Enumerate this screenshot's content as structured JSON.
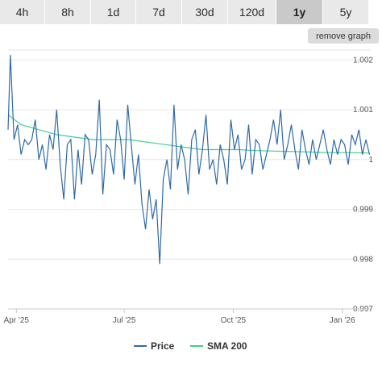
{
  "tabs": [
    {
      "label": "4h",
      "active": false
    },
    {
      "label": "8h",
      "active": false
    },
    {
      "label": "1d",
      "active": false
    },
    {
      "label": "7d",
      "active": false
    },
    {
      "label": "30d",
      "active": false
    },
    {
      "label": "120d",
      "active": false
    },
    {
      "label": "1y",
      "active": true
    },
    {
      "label": "5y",
      "active": false
    }
  ],
  "remove_graph_label": "remove graph",
  "colors": {
    "price": "#2f6aa6",
    "sma": "#3fcf8a",
    "grid": "#e6e6e6",
    "tab_bg": "#e9e9e9",
    "tab_active": "#c9c9c9"
  },
  "chart_data": {
    "type": "line",
    "title": "",
    "xlabel": "",
    "ylabel": "",
    "x_ticks": [
      "Apr '25",
      "Jul '25",
      "Oct '25",
      "Jan '26"
    ],
    "y_ticks": [
      "0.997",
      "0.998",
      "0.999",
      "1",
      "1.001",
      "1.002"
    ],
    "ylim": [
      0.997,
      1.0022
    ],
    "xlim": [
      "2025-03-25",
      "2026-01-25"
    ],
    "legend_position": "bottom",
    "series": [
      {
        "name": "Price",
        "x": [
          "2025-03-25",
          "2025-03-27",
          "2025-03-30",
          "2025-04-02",
          "2025-04-05",
          "2025-04-08",
          "2025-04-11",
          "2025-04-14",
          "2025-04-17",
          "2025-04-20",
          "2025-04-23",
          "2025-04-26",
          "2025-04-29",
          "2025-05-02",
          "2025-05-05",
          "2025-05-08",
          "2025-05-11",
          "2025-05-14",
          "2025-05-17",
          "2025-05-20",
          "2025-05-23",
          "2025-05-26",
          "2025-05-29",
          "2025-06-01",
          "2025-06-04",
          "2025-06-07",
          "2025-06-10",
          "2025-06-13",
          "2025-06-16",
          "2025-06-19",
          "2025-06-22",
          "2025-06-25",
          "2025-06-28",
          "2025-07-01",
          "2025-07-04",
          "2025-07-07",
          "2025-07-10",
          "2025-07-13",
          "2025-07-16",
          "2025-07-19",
          "2025-07-22",
          "2025-07-25",
          "2025-07-28",
          "2025-07-31",
          "2025-08-03",
          "2025-08-06",
          "2025-08-09",
          "2025-08-12",
          "2025-08-15",
          "2025-08-18",
          "2025-08-21",
          "2025-08-24",
          "2025-08-27",
          "2025-08-30",
          "2025-09-02",
          "2025-09-05",
          "2025-09-08",
          "2025-09-11",
          "2025-09-14",
          "2025-09-17",
          "2025-09-20",
          "2025-09-23",
          "2025-09-26",
          "2025-09-29",
          "2025-10-02",
          "2025-10-05",
          "2025-10-08",
          "2025-10-11",
          "2025-10-14",
          "2025-10-17",
          "2025-10-20",
          "2025-10-23",
          "2025-10-26",
          "2025-10-29",
          "2025-11-01",
          "2025-11-04",
          "2025-11-07",
          "2025-11-10",
          "2025-11-13",
          "2025-11-16",
          "2025-11-19",
          "2025-11-22",
          "2025-11-25",
          "2025-11-28",
          "2025-12-01",
          "2025-12-04",
          "2025-12-07",
          "2025-12-10",
          "2025-12-13",
          "2025-12-16",
          "2025-12-19",
          "2025-12-22",
          "2025-12-25",
          "2025-12-28",
          "2025-12-31",
          "2026-01-03",
          "2026-01-06",
          "2026-01-09",
          "2026-01-12",
          "2026-01-15",
          "2026-01-18",
          "2026-01-21",
          "2026-01-24"
        ],
        "values": [
          1.0006,
          1.0021,
          1.0004,
          1.0007,
          1.0001,
          1.0004,
          1.0003,
          1.0004,
          1.0008,
          1.0,
          1.0003,
          0.9998,
          1.0005,
          1.0002,
          1.001,
          0.9999,
          0.9992,
          1.0003,
          1.0004,
          0.9992,
          1.0002,
          0.9995,
          1.0005,
          1.0004,
          0.9997,
          1.0001,
          1.0012,
          0.9993,
          1.0003,
          1.0002,
          0.9997,
          1.0008,
          1.0004,
          0.9996,
          1.0011,
          1.0003,
          0.9995,
          1.0001,
          0.9991,
          0.9986,
          0.9994,
          0.9988,
          0.9992,
          0.9979,
          0.9996,
          1.0,
          0.9994,
          1.0011,
          0.9998,
          1.0003,
          1.0,
          0.9993,
          1.0004,
          1.0006,
          0.9997,
          1.0002,
          1.0009,
          0.9998,
          1.0,
          0.9995,
          1.0003,
          1.0,
          0.9995,
          1.0008,
          1.0002,
          1.0005,
          0.9998,
          1.0,
          1.0007,
          0.9997,
          1.0004,
          1.0003,
          0.9998,
          1.0001,
          1.0004,
          1.0008,
          1.0003,
          1.001,
          1.0,
          1.0003,
          1.0007,
          1.0002,
          0.9998,
          1.0006,
          1.0002,
          0.9999,
          1.0004,
          1.0,
          1.0003,
          1.0006,
          1.0002,
          0.9999,
          1.0004,
          1.0001,
          1.0004,
          1.0003,
          0.9999,
          1.0005,
          1.0003,
          1.0006,
          1.0001,
          1.0004,
          1.0001
        ]
      },
      {
        "name": "SMA 200",
        "x": [
          "2025-03-25",
          "2025-04-05",
          "2025-04-20",
          "2025-05-05",
          "2025-05-20",
          "2025-06-05",
          "2025-06-20",
          "2025-07-05",
          "2025-07-20",
          "2025-08-05",
          "2025-08-20",
          "2025-09-05",
          "2025-09-20",
          "2025-10-05",
          "2025-10-20",
          "2025-11-05",
          "2025-11-20",
          "2025-12-05",
          "2025-12-20",
          "2026-01-05",
          "2026-01-24"
        ],
        "values": [
          1.0009,
          1.0007,
          1.0006,
          1.0005,
          1.00045,
          1.0004,
          1.0004,
          1.0004,
          1.00035,
          1.0003,
          1.00025,
          1.0002,
          1.0002,
          1.0002,
          1.00018,
          1.00017,
          1.00016,
          1.00015,
          1.00014,
          1.00014,
          1.00013
        ]
      }
    ]
  }
}
